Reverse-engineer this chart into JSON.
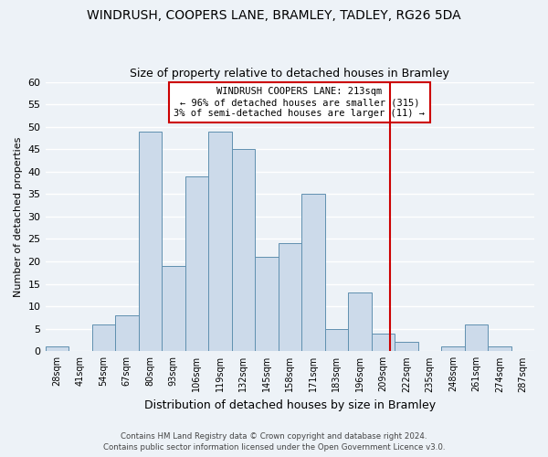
{
  "title": "WINDRUSH, COOPERS LANE, BRAMLEY, TADLEY, RG26 5DA",
  "subtitle": "Size of property relative to detached houses in Bramley",
  "xlabel": "Distribution of detached houses by size in Bramley",
  "ylabel": "Number of detached properties",
  "bin_labels": [
    "28sqm",
    "41sqm",
    "54sqm",
    "67sqm",
    "80sqm",
    "93sqm",
    "106sqm",
    "119sqm",
    "132sqm",
    "145sqm",
    "158sqm",
    "171sqm",
    "183sqm",
    "196sqm",
    "209sqm",
    "222sqm",
    "235sqm",
    "248sqm",
    "261sqm",
    "274sqm",
    "287sqm"
  ],
  "bar_heights": [
    1,
    0,
    6,
    8,
    49,
    19,
    39,
    49,
    45,
    21,
    24,
    35,
    5,
    13,
    4,
    2,
    0,
    1,
    6,
    1,
    0
  ],
  "bar_color": "#ccdaea",
  "bar_edge_color": "#6090b0",
  "vline_x_index": 14.5,
  "bin_edges_raw": [
    28,
    41,
    54,
    67,
    80,
    93,
    106,
    119,
    132,
    145,
    158,
    171,
    183,
    196,
    209,
    222,
    235,
    248,
    261,
    274,
    287,
    300
  ],
  "ylim": [
    0,
    60
  ],
  "yticks": [
    0,
    5,
    10,
    15,
    20,
    25,
    30,
    35,
    40,
    45,
    50,
    55,
    60
  ],
  "annotation_title": "WINDRUSH COOPERS LANE: 213sqm",
  "annotation_line1": "← 96% of detached houses are smaller (315)",
  "annotation_line2": "3% of semi-detached houses are larger (11) →",
  "vline_color": "#cc0000",
  "annotation_box_facecolor": "#ffffff",
  "annotation_box_edgecolor": "#cc0000",
  "footer1": "Contains HM Land Registry data © Crown copyright and database right 2024.",
  "footer2": "Contains public sector information licensed under the Open Government Licence v3.0.",
  "background_color": "#edf2f7",
  "grid_color": "#ffffff",
  "title_fontsize": 10,
  "subtitle_fontsize": 9,
  "ylabel_fontsize": 8,
  "xlabel_fontsize": 9,
  "tick_fontsize": 8,
  "xtick_fontsize": 7
}
